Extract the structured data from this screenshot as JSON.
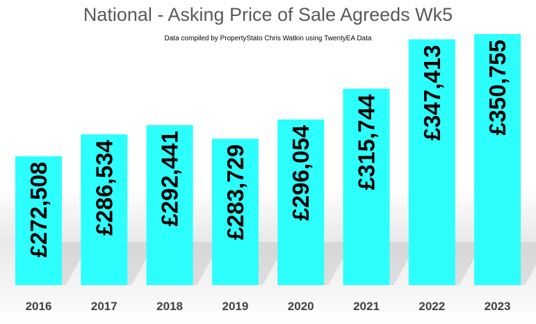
{
  "chart_data": {
    "type": "bar",
    "title": "National - Asking Price of Sale Agreeds  Wk5",
    "subtitle": "Data compiled by PropertyStato Chris Watkin using TwentyEA Data",
    "categories": [
      "2016",
      "2017",
      "2018",
      "2019",
      "2020",
      "2021",
      "2022",
      "2023"
    ],
    "values": [
      272508,
      286534,
      292441,
      283729,
      296054,
      315744,
      347413,
      350755
    ],
    "value_labels": [
      "£272,508",
      "£286,534",
      "£292,441",
      "£283,729",
      "£296,054",
      "£315,744",
      "£347,413",
      "£350,755"
    ],
    "ylim": [
      190000,
      350755
    ],
    "bar_color": "#2dffff",
    "grid": false,
    "legend": "none"
  }
}
